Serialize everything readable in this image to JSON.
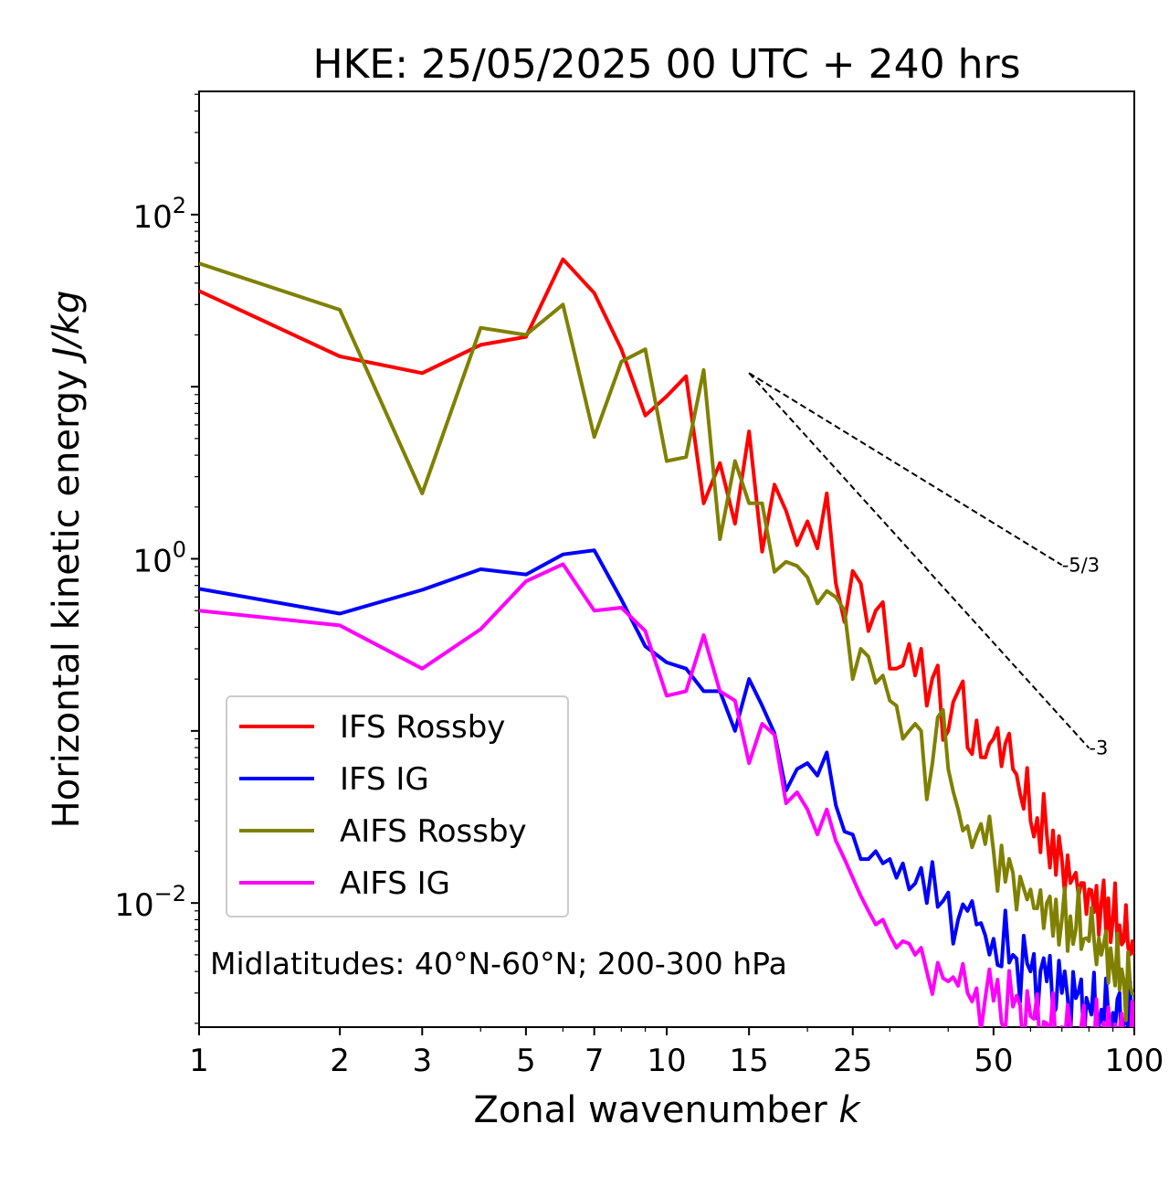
{
  "chart_data": {
    "type": "line",
    "title": "HKE: 25/05/2025 00 UTC + 240 hrs",
    "xlabel": "Zonal wavenumber ",
    "xlabel_italic": "k",
    "ylabel": "Horizontal kinetic energy ",
    "ylabel_italic": "J/kg",
    "xscale": "log",
    "yscale": "log",
    "xlim": [
      1,
      100
    ],
    "ylim": [
      0.0019,
      520
    ],
    "xticks": [
      1,
      2,
      3,
      5,
      7,
      10,
      15,
      25,
      50,
      100
    ],
    "xtick_labels": [
      "1",
      "2",
      "3",
      "5",
      "7",
      "10",
      "15",
      "25",
      "50",
      "100"
    ],
    "yticks": [
      {
        "value": 100,
        "base": "10",
        "exp": "2"
      },
      {
        "value": 1,
        "base": "10",
        "exp": "0"
      },
      {
        "value": 0.01,
        "base": "10",
        "exp": "−2"
      }
    ],
    "annotation": "Midlatitudes: 40°N-60°N; 200-300 hPa",
    "legend_position": "lower-left",
    "grid": false,
    "reference_lines": [
      {
        "label": "-5/3",
        "x": [
          15,
          70
        ],
        "y": [
          12.0,
          0.92
        ]
      },
      {
        "label": "-3",
        "x": [
          15,
          80
        ],
        "y": [
          12.0,
          0.0795
        ]
      }
    ],
    "series": [
      {
        "name": "IFS Rossby",
        "color": "#ff0000",
        "anchors": [
          [
            1,
            36
          ],
          [
            2,
            15
          ],
          [
            3,
            12
          ],
          [
            4,
            17.5
          ],
          [
            5,
            19.5
          ],
          [
            6,
            55
          ],
          [
            7,
            35
          ],
          [
            8,
            16.5
          ],
          [
            9,
            6.8
          ],
          [
            10,
            8.8
          ],
          [
            11,
            11.5
          ],
          [
            12,
            2.1
          ],
          [
            13,
            3.6
          ],
          [
            14,
            1.6
          ],
          [
            15,
            5.5
          ],
          [
            16,
            1.1
          ],
          [
            17,
            2.7
          ],
          [
            18,
            1.9
          ],
          [
            19,
            1.2
          ],
          [
            20,
            1.65
          ],
          [
            21,
            1.15
          ],
          [
            22,
            2.4
          ],
          [
            23,
            0.72
          ],
          [
            24,
            0.43
          ],
          [
            25,
            0.85
          ],
          [
            26,
            0.72
          ],
          [
            27,
            0.38
          ],
          [
            28,
            0.5
          ],
          [
            29,
            0.56
          ],
          [
            30,
            0.23
          ],
          [
            31,
            0.23
          ],
          [
            32,
            0.24
          ],
          [
            33,
            0.32
          ],
          [
            34,
            0.21
          ],
          [
            35,
            0.3
          ],
          [
            36,
            0.14
          ],
          [
            38,
            0.24
          ],
          [
            40,
            0.1
          ],
          [
            42,
            0.17
          ],
          [
            44,
            0.08
          ],
          [
            46,
            0.115
          ],
          [
            48,
            0.07
          ],
          [
            50,
            0.09
          ],
          [
            55,
            0.06
          ],
          [
            60,
            0.03
          ],
          [
            65,
            0.025
          ],
          [
            70,
            0.018
          ],
          [
            75,
            0.015
          ],
          [
            80,
            0.012
          ],
          [
            85,
            0.01
          ],
          [
            90,
            0.008
          ],
          [
            95,
            0.006
          ],
          [
            100,
            0.005
          ]
        ]
      },
      {
        "name": "IFS IG",
        "color": "#0000ff",
        "anchors": [
          [
            1,
            0.67
          ],
          [
            2,
            0.48
          ],
          [
            3,
            0.66
          ],
          [
            4,
            0.87
          ],
          [
            5,
            0.81
          ],
          [
            6,
            1.06
          ],
          [
            7,
            1.12
          ],
          [
            8,
            0.58
          ],
          [
            9,
            0.31
          ],
          [
            10,
            0.25
          ],
          [
            11,
            0.23
          ],
          [
            12,
            0.17
          ],
          [
            13,
            0.17
          ],
          [
            14,
            0.1
          ],
          [
            15,
            0.2
          ],
          [
            16,
            0.14
          ],
          [
            17,
            0.097
          ],
          [
            18,
            0.045
          ],
          [
            19,
            0.06
          ],
          [
            20,
            0.065
          ],
          [
            21,
            0.055
          ],
          [
            22,
            0.075
          ],
          [
            23,
            0.037
          ],
          [
            24,
            0.026
          ],
          [
            25,
            0.025
          ],
          [
            26,
            0.018
          ],
          [
            27,
            0.018
          ],
          [
            28,
            0.02
          ],
          [
            29,
            0.017
          ],
          [
            30,
            0.018
          ],
          [
            31,
            0.014
          ],
          [
            32,
            0.017
          ],
          [
            33,
            0.012
          ],
          [
            34,
            0.013
          ],
          [
            35,
            0.016
          ],
          [
            36,
            0.01
          ],
          [
            38,
            0.0095
          ],
          [
            40,
            0.0115
          ],
          [
            42,
            0.008
          ],
          [
            44,
            0.009
          ],
          [
            46,
            0.0075
          ],
          [
            48,
            0.0065
          ],
          [
            50,
            0.0062
          ],
          [
            55,
            0.005
          ],
          [
            60,
            0.004
          ],
          [
            65,
            0.0035
          ],
          [
            70,
            0.003
          ],
          [
            75,
            0.0028
          ],
          [
            80,
            0.0025
          ],
          [
            85,
            0.0024
          ],
          [
            90,
            0.0023
          ],
          [
            95,
            0.0021
          ],
          [
            100,
            0.002
          ]
        ]
      },
      {
        "name": "AIFS Rossby",
        "color": "#808000",
        "anchors": [
          [
            1,
            52
          ],
          [
            2,
            28
          ],
          [
            3,
            2.4
          ],
          [
            4,
            22
          ],
          [
            5,
            20
          ],
          [
            6,
            30
          ],
          [
            7,
            5.1
          ],
          [
            8,
            14
          ],
          [
            9,
            16.5
          ],
          [
            10,
            3.7
          ],
          [
            11,
            3.9
          ],
          [
            12,
            12.5
          ],
          [
            13,
            1.3
          ],
          [
            14,
            3.7
          ],
          [
            15,
            2.1
          ],
          [
            16,
            2.1
          ],
          [
            17,
            0.84
          ],
          [
            18,
            0.96
          ],
          [
            19,
            0.91
          ],
          [
            20,
            0.78
          ],
          [
            21,
            0.55
          ],
          [
            22,
            0.65
          ],
          [
            23,
            0.6
          ],
          [
            24,
            0.5
          ],
          [
            25,
            0.2
          ],
          [
            26,
            0.3
          ],
          [
            27,
            0.27
          ],
          [
            28,
            0.19
          ],
          [
            29,
            0.21
          ],
          [
            30,
            0.15
          ],
          [
            31,
            0.14
          ],
          [
            32,
            0.09
          ],
          [
            33,
            0.1
          ],
          [
            34,
            0.11
          ],
          [
            35,
            0.1
          ],
          [
            36,
            0.04
          ],
          [
            38,
            0.12
          ],
          [
            40,
            0.06
          ],
          [
            42,
            0.035
          ],
          [
            44,
            0.028
          ],
          [
            46,
            0.025
          ],
          [
            48,
            0.022
          ],
          [
            50,
            0.02
          ],
          [
            55,
            0.015
          ],
          [
            60,
            0.012
          ],
          [
            65,
            0.01
          ],
          [
            70,
            0.008
          ],
          [
            75,
            0.007
          ],
          [
            80,
            0.006
          ],
          [
            85,
            0.005
          ],
          [
            90,
            0.0042
          ],
          [
            95,
            0.0035
          ],
          [
            100,
            0.003
          ]
        ]
      },
      {
        "name": "AIFS IG",
        "color": "#ff00ff",
        "anchors": [
          [
            1,
            0.5
          ],
          [
            2,
            0.41
          ],
          [
            3,
            0.23
          ],
          [
            4,
            0.39
          ],
          [
            5,
            0.74
          ],
          [
            6,
            0.93
          ],
          [
            7,
            0.5
          ],
          [
            8,
            0.52
          ],
          [
            9,
            0.38
          ],
          [
            10,
            0.16
          ],
          [
            11,
            0.17
          ],
          [
            12,
            0.36
          ],
          [
            13,
            0.17
          ],
          [
            14,
            0.15
          ],
          [
            15,
            0.065
          ],
          [
            16,
            0.11
          ],
          [
            17,
            0.095
          ],
          [
            18,
            0.038
          ],
          [
            19,
            0.044
          ],
          [
            20,
            0.035
          ],
          [
            21,
            0.025
          ],
          [
            22,
            0.035
          ],
          [
            23,
            0.023
          ],
          [
            24,
            0.018
          ],
          [
            25,
            0.014
          ],
          [
            26,
            0.011
          ],
          [
            27,
            0.009
          ],
          [
            28,
            0.0075
          ],
          [
            29,
            0.008
          ],
          [
            30,
            0.0065
          ],
          [
            31,
            0.0055
          ],
          [
            32,
            0.006
          ],
          [
            33,
            0.0058
          ],
          [
            34,
            0.005
          ],
          [
            35,
            0.0055
          ],
          [
            36,
            0.004
          ],
          [
            38,
            0.0045
          ],
          [
            40,
            0.0035
          ],
          [
            42,
            0.0033
          ],
          [
            44,
            0.003
          ],
          [
            46,
            0.0032
          ],
          [
            48,
            0.0028
          ],
          [
            50,
            0.0027
          ],
          [
            55,
            0.0025
          ],
          [
            60,
            0.0022
          ],
          [
            65,
            0.002
          ],
          [
            70,
            0.0019
          ],
          [
            75,
            0.0018
          ],
          [
            80,
            0.0017
          ],
          [
            85,
            0.0016
          ],
          [
            90,
            0.0016
          ],
          [
            95,
            0.0015
          ],
          [
            100,
            0.0015
          ]
        ]
      }
    ]
  }
}
